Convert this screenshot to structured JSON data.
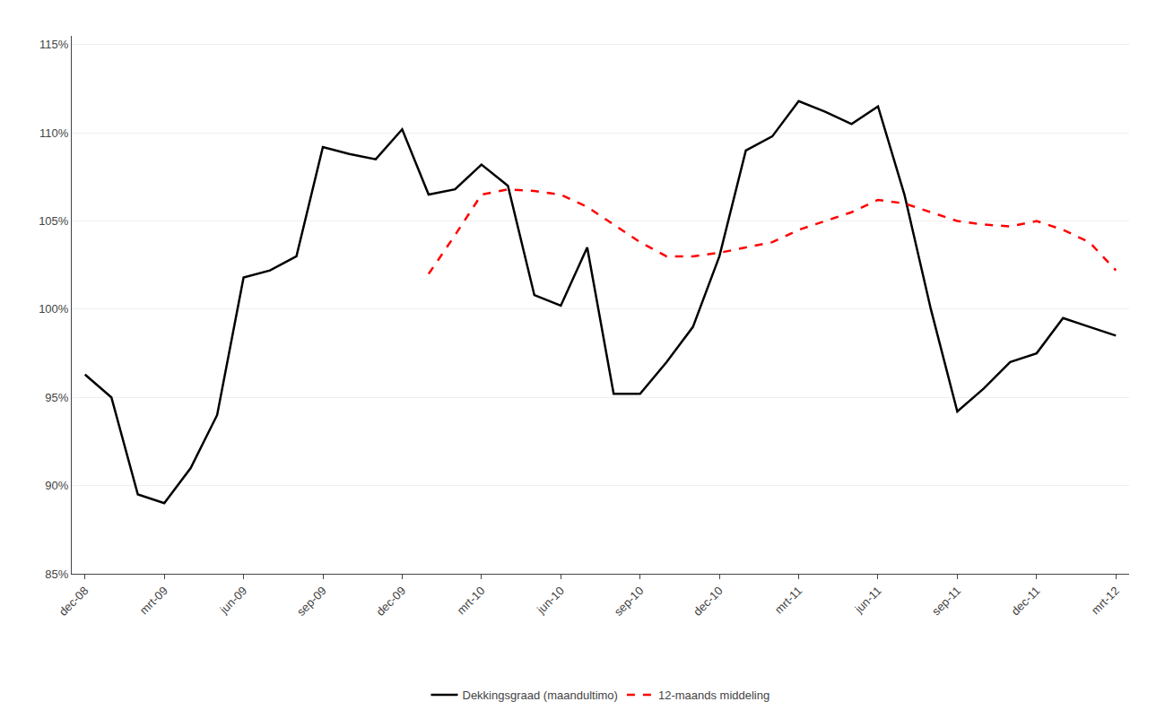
{
  "chart_data": {
    "type": "line",
    "categories": [
      "dec-08",
      null,
      null,
      "mrt-09",
      null,
      null,
      "jun-09",
      null,
      null,
      "sep-09",
      null,
      null,
      "dec-09",
      null,
      null,
      "mrt-10",
      null,
      null,
      "jun-10",
      null,
      null,
      "sep-10",
      null,
      null,
      "dec-10",
      null,
      null,
      "mrt-11",
      null,
      null,
      "jun-11",
      null,
      null,
      "sep-11",
      null,
      null,
      "dec-11",
      null,
      null,
      "mrt-12"
    ],
    "series": [
      {
        "name": "Dekkingsgraad (maandultimo)",
        "color": "#000000",
        "line_style": "solid",
        "values": [
          0.963,
          0.95,
          0.895,
          0.89,
          0.91,
          0.94,
          1.018,
          1.022,
          1.03,
          1.092,
          1.088,
          1.085,
          1.102,
          1.065,
          1.068,
          1.082,
          1.07,
          1.008,
          1.002,
          1.035,
          0.952,
          0.952,
          0.97,
          0.99,
          1.03,
          1.09,
          1.098,
          1.118,
          1.112,
          1.105,
          1.115,
          1.065,
          1.0,
          0.942,
          0.955,
          0.97,
          0.975,
          0.995,
          0.99,
          0.985
        ]
      },
      {
        "name": "12-maands middeling",
        "color": "#FF0000",
        "line_style": "dashed",
        "values": [
          null,
          null,
          null,
          null,
          null,
          null,
          null,
          null,
          null,
          null,
          null,
          null,
          null,
          1.02,
          1.042,
          1.065,
          1.068,
          1.067,
          1.065,
          1.058,
          1.048,
          1.038,
          1.03,
          1.03,
          1.032,
          1.035,
          1.038,
          1.045,
          1.05,
          1.055,
          1.062,
          1.06,
          1.055,
          1.05,
          1.048,
          1.047,
          1.05,
          1.045,
          1.038,
          1.022
        ]
      }
    ],
    "ylim": [
      0.85,
      1.155
    ],
    "yticks": [
      {
        "value": 0.85,
        "label": "85%"
      },
      {
        "value": 0.9,
        "label": "90%"
      },
      {
        "value": 0.95,
        "label": "95%"
      },
      {
        "value": 1.0,
        "label": "100%"
      },
      {
        "value": 1.05,
        "label": "105%"
      },
      {
        "value": 1.1,
        "label": "110%"
      },
      {
        "value": 1.15,
        "label": "115%"
      }
    ],
    "grid": true,
    "legend": "bottom"
  }
}
